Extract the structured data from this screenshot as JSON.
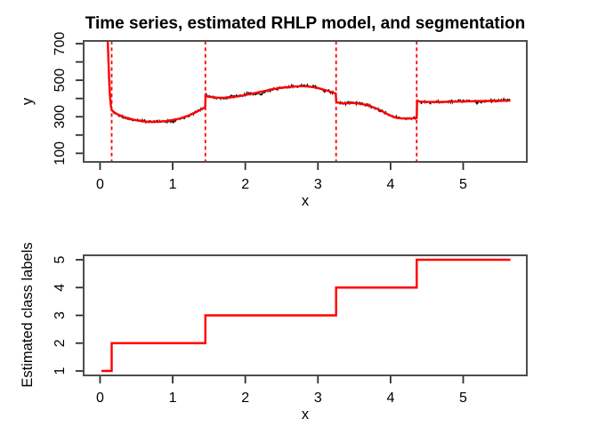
{
  "style": {
    "background": "#ffffff",
    "series_color": "#000000",
    "model_color": "#ff0000",
    "boundary_color": "#ff0000",
    "step_color": "#ff0000",
    "frame_color": "#4d4d4d",
    "tick_color": "#2e2e2e",
    "text_color": "#000000"
  },
  "chart_data": [
    {
      "type": "line",
      "title": "Time series, estimated RHLP model, and segmentation",
      "xlabel": "x",
      "ylabel": "y",
      "xlim": [
        -0.226,
        5.876
      ],
      "ylim": [
        53,
        715
      ],
      "grid": "off",
      "legend": "none",
      "x_ticks": [
        0,
        1,
        2,
        3,
        4,
        5
      ],
      "x_tick_labels": [
        "0",
        "1",
        "2",
        "3",
        "4",
        "5"
      ],
      "y_ticks": [
        100,
        200,
        300,
        400,
        500,
        600,
        700
      ],
      "y_tick_labels": [
        "100",
        "",
        "300",
        "",
        "500",
        "",
        "700"
      ],
      "segmentation_boundaries": [
        0.16,
        1.45,
        3.25,
        4.36
      ],
      "boundary_style": "vertical dashed red lines",
      "series": [
        {
          "name": "observed time series",
          "color": "#000000",
          "style": "noisy line",
          "render": "model_plus_noise",
          "x_start": 0.03,
          "x_end": 5.65,
          "sample_step": 0.008,
          "noise_sd": 4.5,
          "noise_seed": 11,
          "deviations": [
            {
              "x": 2.21,
              "dy": -13,
              "sigma": 0.05
            },
            {
              "x": 1.82,
              "dy": 6,
              "sigma": 0.05
            },
            {
              "x": 2.95,
              "dy": 5,
              "sigma": 0.04
            }
          ]
        },
        {
          "name": "estimated RHLP model mean",
          "color": "#ff0000",
          "style": "smooth line",
          "points": [
            [
              0.03,
              1000
            ],
            [
              0.06,
              950
            ],
            [
              0.08,
              885
            ],
            [
              0.095,
              805
            ],
            [
              0.105,
              718
            ],
            [
              0.112,
              645
            ],
            [
              0.118,
              578
            ],
            [
              0.125,
              505
            ],
            [
              0.132,
              443
            ],
            [
              0.14,
              396
            ],
            [
              0.148,
              364
            ],
            [
              0.16,
              336
            ],
            [
              0.2,
              322
            ],
            [
              0.25,
              312
            ],
            [
              0.3,
              303
            ],
            [
              0.35,
              296
            ],
            [
              0.4,
              290
            ],
            [
              0.45,
              285
            ],
            [
              0.5,
              281
            ],
            [
              0.55,
              278
            ],
            [
              0.6,
              275
            ],
            [
              0.65,
              273
            ],
            [
              0.7,
              272
            ],
            [
              0.75,
              272
            ],
            [
              0.8,
              273
            ],
            [
              0.85,
              274
            ],
            [
              0.9,
              276
            ],
            [
              0.95,
              279
            ],
            [
              1.0,
              282
            ],
            [
              1.05,
              286
            ],
            [
              1.1,
              291
            ],
            [
              1.15,
              297
            ],
            [
              1.2,
              304
            ],
            [
              1.25,
              312
            ],
            [
              1.3,
              321
            ],
            [
              1.35,
              331
            ],
            [
              1.4,
              342
            ],
            [
              1.44,
              351
            ],
            [
              1.448,
              355
            ],
            [
              1.452,
              418
            ],
            [
              1.47,
              413
            ],
            [
              1.5,
              410
            ],
            [
              1.55,
              407
            ],
            [
              1.6,
              405
            ],
            [
              1.65,
              404
            ],
            [
              1.7,
              404
            ],
            [
              1.75,
              405
            ],
            [
              1.8,
              407
            ],
            [
              1.85,
              409
            ],
            [
              1.9,
              412
            ],
            [
              1.95,
              415
            ],
            [
              2.0,
              419
            ],
            [
              2.05,
              423
            ],
            [
              2.1,
              427
            ],
            [
              2.15,
              431
            ],
            [
              2.2,
              436
            ],
            [
              2.25,
              440
            ],
            [
              2.3,
              444
            ],
            [
              2.35,
              448
            ],
            [
              2.4,
              452
            ],
            [
              2.45,
              456
            ],
            [
              2.5,
              459
            ],
            [
              2.55,
              461
            ],
            [
              2.6,
              463
            ],
            [
              2.65,
              465
            ],
            [
              2.7,
              466
            ],
            [
              2.75,
              467
            ],
            [
              2.8,
              467
            ],
            [
              2.85,
              466
            ],
            [
              2.9,
              464
            ],
            [
              2.95,
              461
            ],
            [
              3.0,
              457
            ],
            [
              3.05,
              452
            ],
            [
              3.1,
              446
            ],
            [
              3.15,
              440
            ],
            [
              3.2,
              434
            ],
            [
              3.245,
              428
            ],
            [
              3.252,
              381
            ],
            [
              3.3,
              375
            ],
            [
              3.35,
              373
            ],
            [
              3.4,
              374
            ],
            [
              3.45,
              375
            ],
            [
              3.5,
              375
            ],
            [
              3.55,
              373
            ],
            [
              3.6,
              370
            ],
            [
              3.65,
              366
            ],
            [
              3.7,
              361
            ],
            [
              3.75,
              354
            ],
            [
              3.8,
              346
            ],
            [
              3.85,
              337
            ],
            [
              3.9,
              327
            ],
            [
              3.95,
              316
            ],
            [
              4.0,
              306
            ],
            [
              4.05,
              298
            ],
            [
              4.1,
              293
            ],
            [
              4.15,
              291
            ],
            [
              4.2,
              290
            ],
            [
              4.25,
              290
            ],
            [
              4.3,
              291
            ],
            [
              4.36,
              293
            ],
            [
              4.365,
              390
            ],
            [
              4.4,
              383
            ],
            [
              4.5,
              381
            ],
            [
              4.6,
              381
            ],
            [
              4.7,
              381
            ],
            [
              4.8,
              382
            ],
            [
              4.9,
              383
            ],
            [
              5.0,
              384
            ],
            [
              5.1,
              385
            ],
            [
              5.2,
              386
            ],
            [
              5.3,
              386
            ],
            [
              5.4,
              387
            ],
            [
              5.5,
              387
            ],
            [
              5.6,
              388
            ],
            [
              5.65,
              388
            ]
          ]
        }
      ]
    },
    {
      "type": "step",
      "title": "",
      "xlabel": "x",
      "ylabel": "Estimated class labels",
      "xlim": [
        -0.226,
        5.876
      ],
      "ylim": [
        0.84,
        5.16
      ],
      "grid": "off",
      "legend": "none",
      "x_ticks": [
        0,
        1,
        2,
        3,
        4,
        5
      ],
      "x_tick_labels": [
        "0",
        "1",
        "2",
        "3",
        "4",
        "5"
      ],
      "y_ticks": [
        1,
        2,
        3,
        4,
        5
      ],
      "y_tick_labels": [
        "1",
        "2",
        "3",
        "4",
        "5"
      ],
      "step_color": "#ff0000",
      "step_points": [
        [
          0.02,
          1
        ],
        [
          0.16,
          1
        ],
        [
          0.16,
          2
        ],
        [
          1.45,
          2
        ],
        [
          1.45,
          3
        ],
        [
          3.25,
          3
        ],
        [
          3.25,
          4
        ],
        [
          4.36,
          4
        ],
        [
          4.36,
          5
        ],
        [
          5.65,
          5
        ]
      ],
      "classes": [
        {
          "label": 1,
          "from": 0.02,
          "to": 0.16
        },
        {
          "label": 2,
          "from": 0.16,
          "to": 1.45
        },
        {
          "label": 3,
          "from": 1.45,
          "to": 3.25
        },
        {
          "label": 4,
          "from": 3.25,
          "to": 4.36
        },
        {
          "label": 5,
          "from": 4.36,
          "to": 5.65
        }
      ]
    }
  ]
}
